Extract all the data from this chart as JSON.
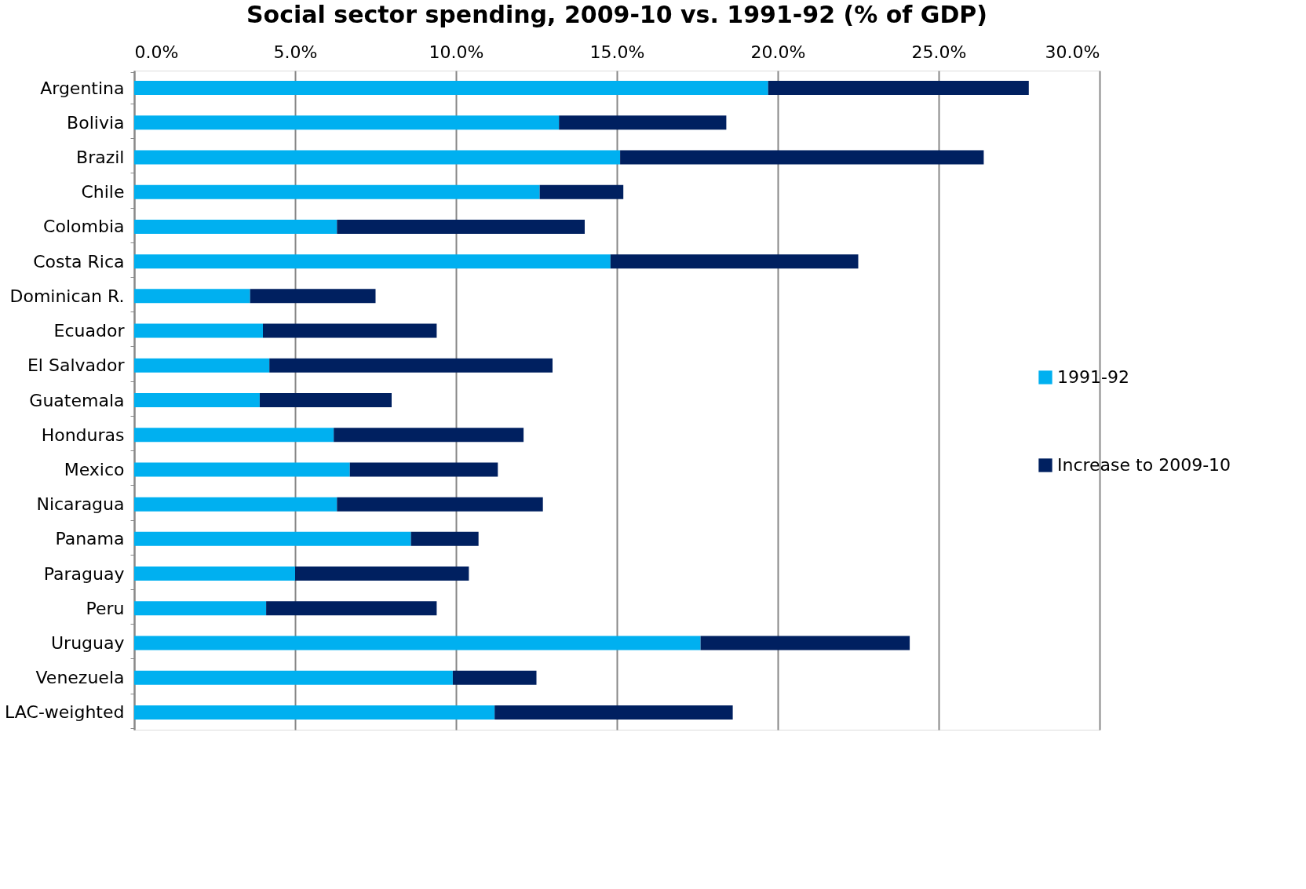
{
  "chart_data": {
    "type": "bar",
    "orientation": "horizontal",
    "stacked": true,
    "title": "Social sector spending, 2009-10 vs. 1991-92 (% of GDP)",
    "categories": [
      "Argentina",
      "Bolivia",
      "Brazil",
      "Chile",
      "Colombia",
      "Costa Rica",
      "Dominican R.",
      "Ecuador",
      "El Salvador",
      "Guatemala",
      "Honduras",
      "Mexico",
      "Nicaragua",
      "Panama",
      "Paraguay",
      "Peru",
      "Uruguay",
      "Venezuela",
      "LAC-weighted"
    ],
    "series": [
      {
        "name": "1991-92",
        "color": "#00b0f0",
        "values": [
          19.7,
          13.2,
          15.1,
          12.6,
          6.3,
          14.8,
          3.6,
          4.0,
          4.2,
          3.9,
          6.2,
          6.7,
          6.3,
          8.6,
          5.0,
          4.1,
          17.6,
          9.9,
          11.2
        ]
      },
      {
        "name": "Increase to 2009-10",
        "color": "#002060",
        "values": [
          8.1,
          5.2,
          11.3,
          2.6,
          7.7,
          7.7,
          3.9,
          5.4,
          8.8,
          4.1,
          5.9,
          4.6,
          6.4,
          2.1,
          5.4,
          5.3,
          6.5,
          2.6,
          7.4
        ]
      }
    ],
    "xlim": [
      0,
      30
    ],
    "xticks": [
      {
        "value": 0,
        "label": "0.0%"
      },
      {
        "value": 5,
        "label": "5.0%"
      },
      {
        "value": 10,
        "label": "10.0%"
      },
      {
        "value": 15,
        "label": "15.0%"
      },
      {
        "value": 20,
        "label": "20.0%"
      },
      {
        "value": 25,
        "label": "25.0%"
      },
      {
        "value": 30,
        "label": "30.0%"
      }
    ],
    "grid": "x",
    "legend": "right"
  }
}
